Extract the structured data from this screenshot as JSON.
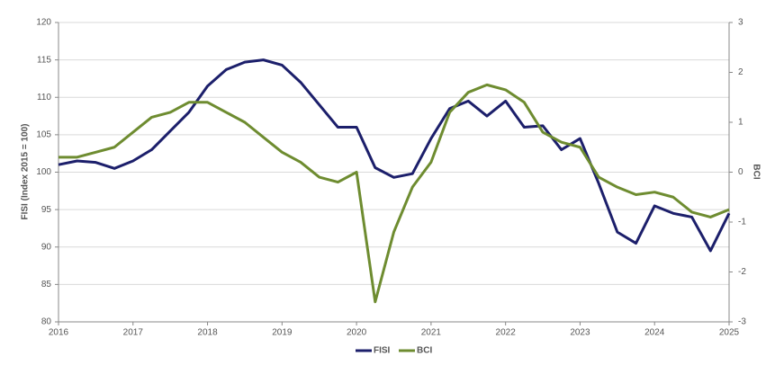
{
  "chart_data": {
    "type": "line",
    "x": [
      2016,
      2016.25,
      2016.5,
      2016.75,
      2017,
      2017.25,
      2017.5,
      2017.75,
      2018,
      2018.25,
      2018.5,
      2018.75,
      2019,
      2019.25,
      2019.5,
      2019.75,
      2020,
      2020.25,
      2020.5,
      2020.75,
      2021,
      2021.25,
      2021.5,
      2021.75,
      2022,
      2022.25,
      2022.5,
      2022.75,
      2023,
      2023.25,
      2023.5,
      2023.75,
      2024,
      2024.25,
      2024.5,
      2024.75,
      2025
    ],
    "series": [
      {
        "name": "FISI",
        "color": "#1c1f6b",
        "values": [
          101,
          101.5,
          101.3,
          100.5,
          101.5,
          103,
          105.5,
          108,
          111.5,
          113.7,
          114.7,
          115,
          114.3,
          112,
          109,
          106,
          106,
          100.6,
          99.3,
          99.8,
          104.5,
          108.5,
          109.5,
          107.5,
          109.5,
          106,
          106.2,
          103,
          104.5,
          98.5,
          92,
          90.5,
          95.5,
          94.5,
          94,
          89.5,
          94.5
        ]
      },
      {
        "name": "BCI",
        "color": "#6e8c30",
        "axis": "y2",
        "values": [
          0.3,
          0.3,
          0.4,
          0.5,
          0.8,
          1.1,
          1.2,
          1.4,
          1.4,
          1.2,
          1.0,
          0.7,
          0.4,
          0.2,
          -0.1,
          -0.2,
          0,
          -2.6,
          -1.2,
          -0.3,
          0.2,
          1.2,
          1.6,
          1.75,
          1.65,
          1.4,
          0.8,
          0.6,
          0.5,
          -0.1,
          -0.3,
          -0.45,
          -0.4,
          -0.5,
          -0.8,
          -0.9,
          -0.75
        ]
      }
    ],
    "xlim": [
      2016,
      2025
    ],
    "xticks": [
      2016,
      2017,
      2018,
      2019,
      2020,
      2021,
      2022,
      2023,
      2024,
      2025
    ],
    "ylim": [
      80,
      120
    ],
    "yticks": [
      80,
      85,
      90,
      95,
      100,
      105,
      110,
      115,
      120
    ],
    "y2lim": [
      -3,
      3
    ],
    "y2ticks": [
      -3,
      -2,
      -1,
      0,
      1,
      2,
      3
    ],
    "ylabel": "FISI (Index 2015 = 100)",
    "y2label": "BCI",
    "grid": true,
    "legend": "bottom"
  }
}
